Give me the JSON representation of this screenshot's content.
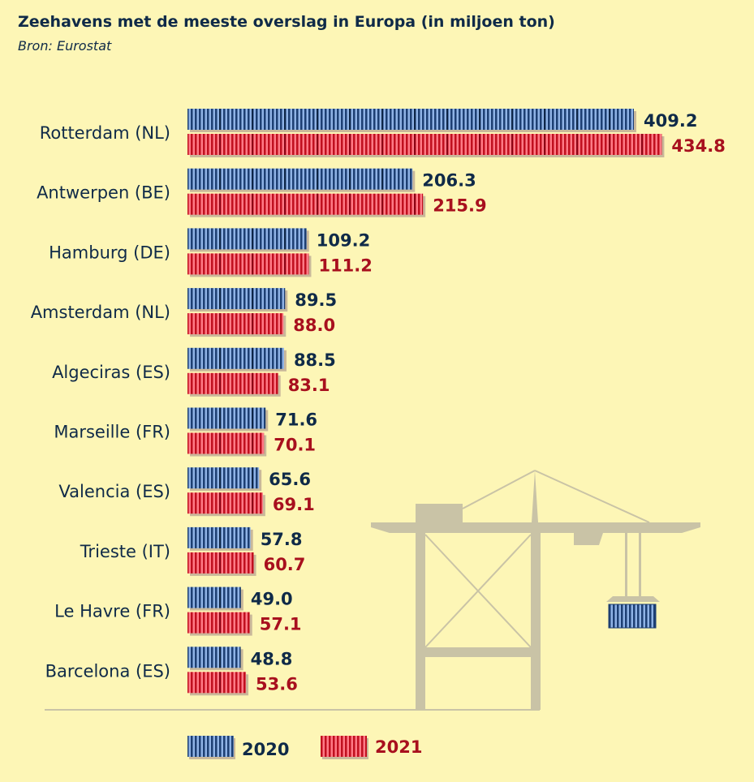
{
  "title": "Zeehavens met de meeste overslag in Europa (in miljoen ton)",
  "subtitle": "Bron: Eurostat",
  "chart_data": {
    "type": "bar",
    "orientation": "horizontal",
    "title": "Zeehavens met de meeste overslag in Europa (in miljoen ton)",
    "categories": [
      "Rotterdam (NL)",
      "Antwerpen (BE)",
      "Hamburg (DE)",
      "Amsterdam (NL)",
      "Algeciras (ES)",
      "Marseille (FR)",
      "Valencia (ES)",
      "Trieste (IT)",
      "Le Havre (FR)",
      "Barcelona (ES)"
    ],
    "series": [
      {
        "name": "2020",
        "color": "#1d3f73",
        "values": [
          409.2,
          206.3,
          109.2,
          89.5,
          88.5,
          71.6,
          65.6,
          57.8,
          49.0,
          48.8
        ],
        "labels": [
          "409.2",
          "206.3",
          "109.2",
          "89.5",
          "88.5",
          "71.6",
          "65.6",
          "57.8",
          "49.0",
          "48.8"
        ]
      },
      {
        "name": "2021",
        "color": "#d8142c",
        "values": [
          434.8,
          215.9,
          111.2,
          88.0,
          83.1,
          70.1,
          69.1,
          60.7,
          57.1,
          53.6
        ],
        "labels": [
          "434.8",
          "215.9",
          "111.2",
          "88.0",
          "83.1",
          "70.1",
          "69.1",
          "60.7",
          "57.1",
          "53.6"
        ]
      }
    ],
    "legend": "bottom",
    "grid": false
  }
}
